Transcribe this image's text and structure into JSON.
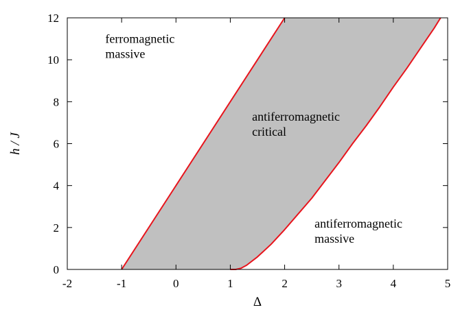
{
  "chart_data": {
    "type": "area",
    "xlabel": "Δ",
    "ylabel": "h / J",
    "xlim": [
      -2,
      5
    ],
    "ylim": [
      0,
      12
    ],
    "x_ticks": [
      "-2",
      "-1",
      "0",
      "1",
      "2",
      "3",
      "4",
      "5"
    ],
    "y_ticks": [
      "0",
      "2",
      "4",
      "6",
      "8",
      "10",
      "12"
    ],
    "grid": false,
    "legend": "none",
    "colors": {
      "boundary": "#e8141c",
      "critical_fill": "#c0c0c0",
      "frame": "#000000"
    },
    "series": [
      {
        "values": [
          {
            "x": -1.0,
            "y": 0.0
          },
          {
            "x": 0.0,
            "y": 4.0
          },
          {
            "x": 1.0,
            "y": 8.0
          },
          {
            "x": 2.0,
            "y": 12.0
          }
        ]
      },
      {
        "values": [
          {
            "x": 1.0,
            "y": 0.0
          },
          {
            "x": 1.1,
            "y": 0.0
          },
          {
            "x": 1.2,
            "y": 0.06
          },
          {
            "x": 1.3,
            "y": 0.2
          },
          {
            "x": 1.5,
            "y": 0.6
          },
          {
            "x": 1.75,
            "y": 1.2
          },
          {
            "x": 2.0,
            "y": 1.9
          },
          {
            "x": 2.25,
            "y": 2.65
          },
          {
            "x": 2.5,
            "y": 3.4
          },
          {
            "x": 2.75,
            "y": 4.25
          },
          {
            "x": 3.0,
            "y": 5.1
          },
          {
            "x": 3.25,
            "y": 6.0
          },
          {
            "x": 3.5,
            "y": 6.85
          },
          {
            "x": 3.75,
            "y": 7.75
          },
          {
            "x": 4.0,
            "y": 8.7
          },
          {
            "x": 4.25,
            "y": 9.6
          },
          {
            "x": 4.5,
            "y": 10.55
          },
          {
            "x": 4.75,
            "y": 11.5
          },
          {
            "x": 4.87,
            "y": 12.0
          }
        ]
      }
    ],
    "annotations": [
      {
        "lines": [
          "ferromagnetic",
          "massive"
        ],
        "x": -1.3,
        "y": 10.8
      },
      {
        "lines": [
          "antiferromagnetic",
          "critical"
        ],
        "x": 1.4,
        "y": 7.1
      },
      {
        "lines": [
          "antiferromagnetic",
          "massive"
        ],
        "x": 2.55,
        "y": 2.0
      }
    ]
  }
}
